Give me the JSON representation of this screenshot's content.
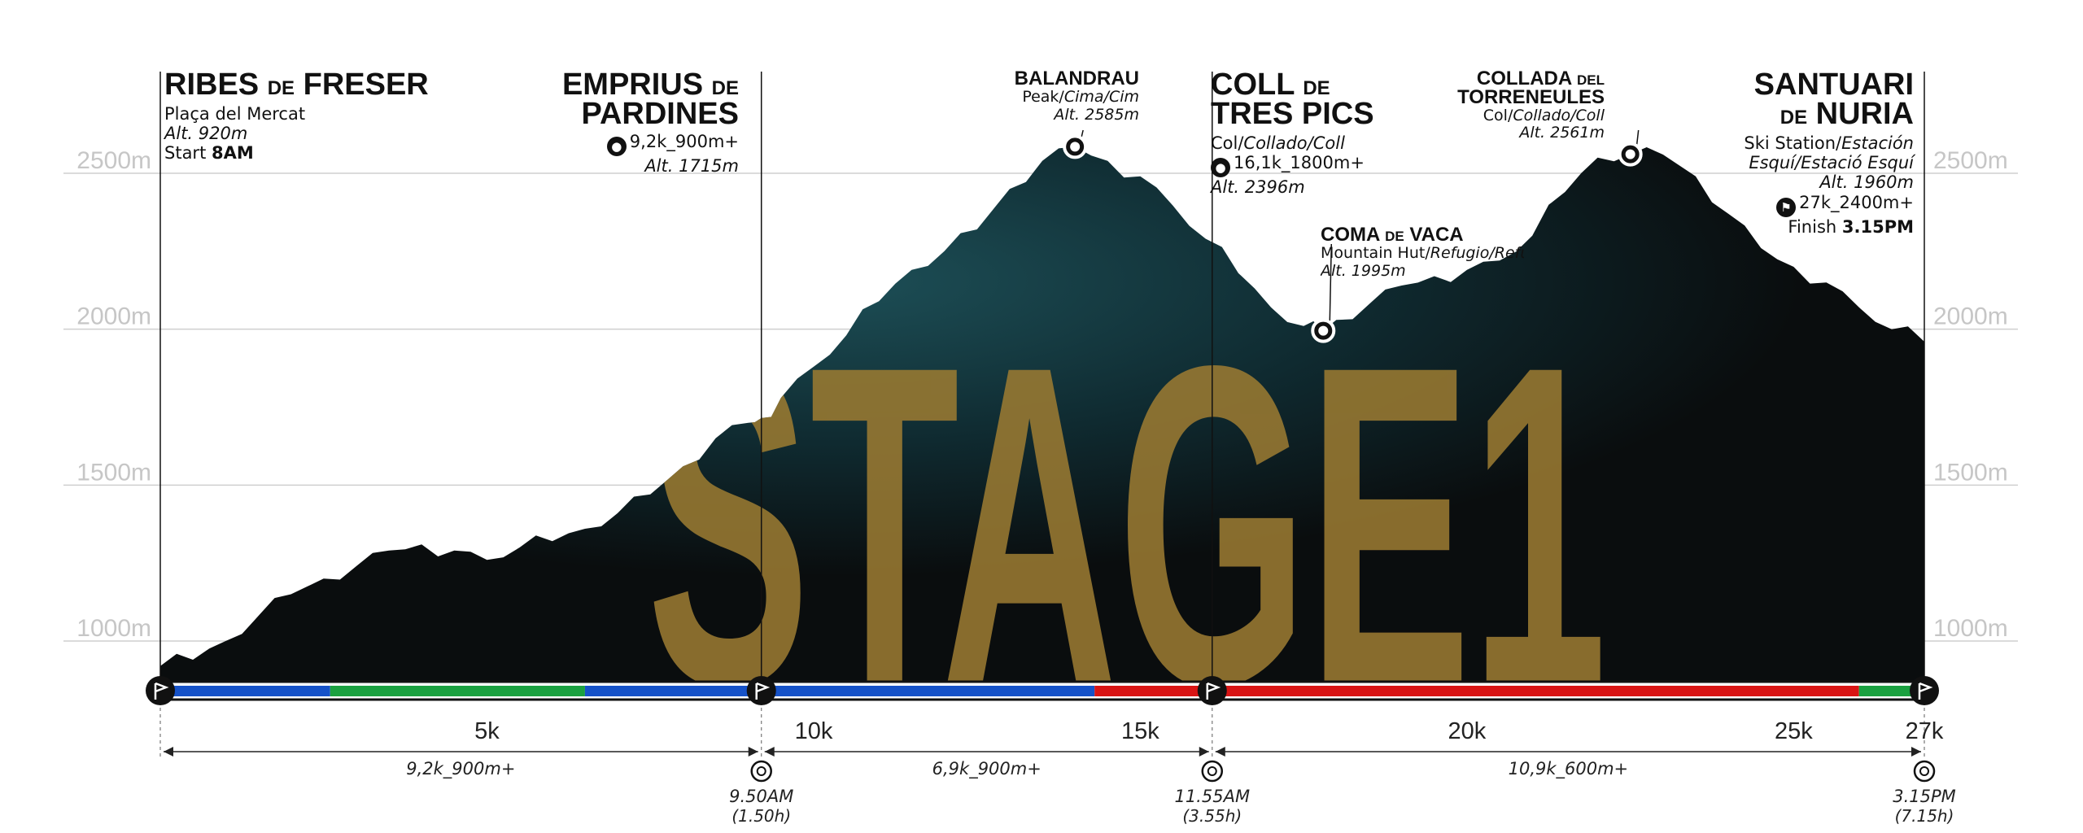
{
  "chart_data": {
    "type": "area",
    "title": "STAGE1",
    "x_unit": "k",
    "y_unit": "m",
    "xlim": [
      0,
      27
    ],
    "ylim": [
      850,
      2620
    ],
    "y_ticks": [
      "1000m",
      "1500m",
      "2000m",
      "2500m"
    ],
    "y_tick_values": [
      1000,
      1500,
      2000,
      2500
    ],
    "x_ticks": [
      "5k",
      "10k",
      "15k",
      "20k",
      "25k",
      "27k"
    ],
    "x_tick_values": [
      5,
      10,
      15,
      20,
      25,
      27
    ],
    "grid": true,
    "profile": {
      "x": [
        0,
        0.5,
        1.0,
        1.5,
        2.0,
        2.5,
        3.0,
        3.5,
        4.0,
        4.5,
        5.0,
        5.5,
        6.0,
        6.5,
        7.0,
        7.5,
        8.0,
        8.5,
        9.0,
        9.2,
        9.5,
        10.0,
        10.5,
        11.0,
        11.5,
        12.0,
        12.5,
        13.0,
        13.5,
        14.0,
        14.5,
        15.0,
        15.5,
        16.0,
        16.5,
        17.0,
        17.5,
        17.8,
        18.0,
        18.5,
        19.0,
        19.5,
        20.0,
        20.5,
        21.0,
        21.5,
        22.0,
        22.5,
        23.0,
        23.5,
        24.0,
        24.5,
        25.0,
        25.5,
        26.0,
        26.5,
        27.0
      ],
      "y": [
        920,
        940,
        1000,
        1080,
        1150,
        1200,
        1240,
        1290,
        1310,
        1290,
        1260,
        1300,
        1320,
        1360,
        1410,
        1470,
        1560,
        1650,
        1700,
        1715,
        1780,
        1880,
        1980,
        2090,
        2190,
        2250,
        2320,
        2450,
        2540,
        2585,
        2540,
        2490,
        2396,
        2290,
        2180,
        2070,
        2010,
        1995,
        2030,
        2080,
        2140,
        2170,
        2190,
        2220,
        2300,
        2440,
        2550,
        2561,
        2560,
        2490,
        2370,
        2260,
        2200,
        2150,
        2070,
        2000,
        1960
      ]
    },
    "path_segments": [
      {
        "from": 0,
        "to": 2.6,
        "color": "#1652c8"
      },
      {
        "from": 2.6,
        "to": 6.5,
        "color": "#1ba140"
      },
      {
        "from": 6.5,
        "to": 14.3,
        "color": "#1652c8"
      },
      {
        "from": 14.3,
        "to": 26.0,
        "color": "#d91414"
      },
      {
        "from": 26.0,
        "to": 27.0,
        "color": "#1ba140"
      }
    ],
    "sections": [
      {
        "from": 0,
        "to": 9.2,
        "label": "9,2k_900m+"
      },
      {
        "from": 9.2,
        "to": 16.1,
        "label": "6,9k_900m+"
      },
      {
        "from": 16.1,
        "to": 27.0,
        "label": "10,9k_600m+"
      }
    ],
    "time_markers": [
      {
        "x": 9.2,
        "time": "9.50AM",
        "elapsed": "(1.50h)"
      },
      {
        "x": 16.1,
        "time": "11.55AM",
        "elapsed": "(3.55h)"
      },
      {
        "x": 27.0,
        "time": "3.15PM",
        "elapsed": "(7.15h)"
      }
    ],
    "peak_markers": [
      {
        "x": 14.0,
        "alt": 2585
      },
      {
        "x": 17.8,
        "alt": 1995
      },
      {
        "x": 22.5,
        "alt": 2561
      }
    ],
    "checkpoints": [
      0,
      9.2,
      16.1,
      27.0
    ]
  },
  "labels": {
    "ribes": {
      "title1": "RIBES",
      "small": "DE",
      "title2": "FRESER",
      "line1": "Plaça del Mercat",
      "alt": "Alt. 920m",
      "start_prefix": "Start",
      "start_time": "8AM"
    },
    "emprius": {
      "title1": "EMPRIUS",
      "small": "DE",
      "title2": "PARDINES",
      "dist": "9,2k_900m+",
      "alt": "Alt. 1715m"
    },
    "balandrau": {
      "title": "BALANDRAU",
      "type": "Peak/",
      "type_it": "Cima/Cim",
      "alt": "Alt. 2585m"
    },
    "coll": {
      "title1": "COLL",
      "small": "DE",
      "title2": "TRES PICS",
      "type": "Col/",
      "type_it": "Collado/Coll",
      "dist": "16,1k_1800m+",
      "alt": "Alt. 2396m"
    },
    "coma": {
      "title1": "COMA",
      "small": "DE",
      "title2": "VACA",
      "type": "Mountain Hut/",
      "type_it": "Refugio/Refugi",
      "alt": "Alt. 1995m"
    },
    "collada": {
      "title1": "COLLADA",
      "small": "DEL",
      "title2": "TORRENEULES",
      "type": "Col/",
      "type_it": "Collado/Coll",
      "alt": "Alt. 2561m"
    },
    "nuria": {
      "title1": "SANTUARI",
      "small": "DE",
      "title2": "NURIA",
      "type": "Ski Station/",
      "type_it": "Estación",
      "type_it2": "Esquí/Estació Esquí",
      "alt": "Alt. 1960m",
      "dist": "27k_2400m+",
      "finish_prefix": "Finish",
      "finish_time": "3.15PM"
    }
  },
  "colors": {
    "profile": "#0b0f10",
    "profile_glow": "#123a40",
    "stage_text": "#9a7a32",
    "grid": "#cfcfcf",
    "tick_text": "#c6c6c6"
  }
}
